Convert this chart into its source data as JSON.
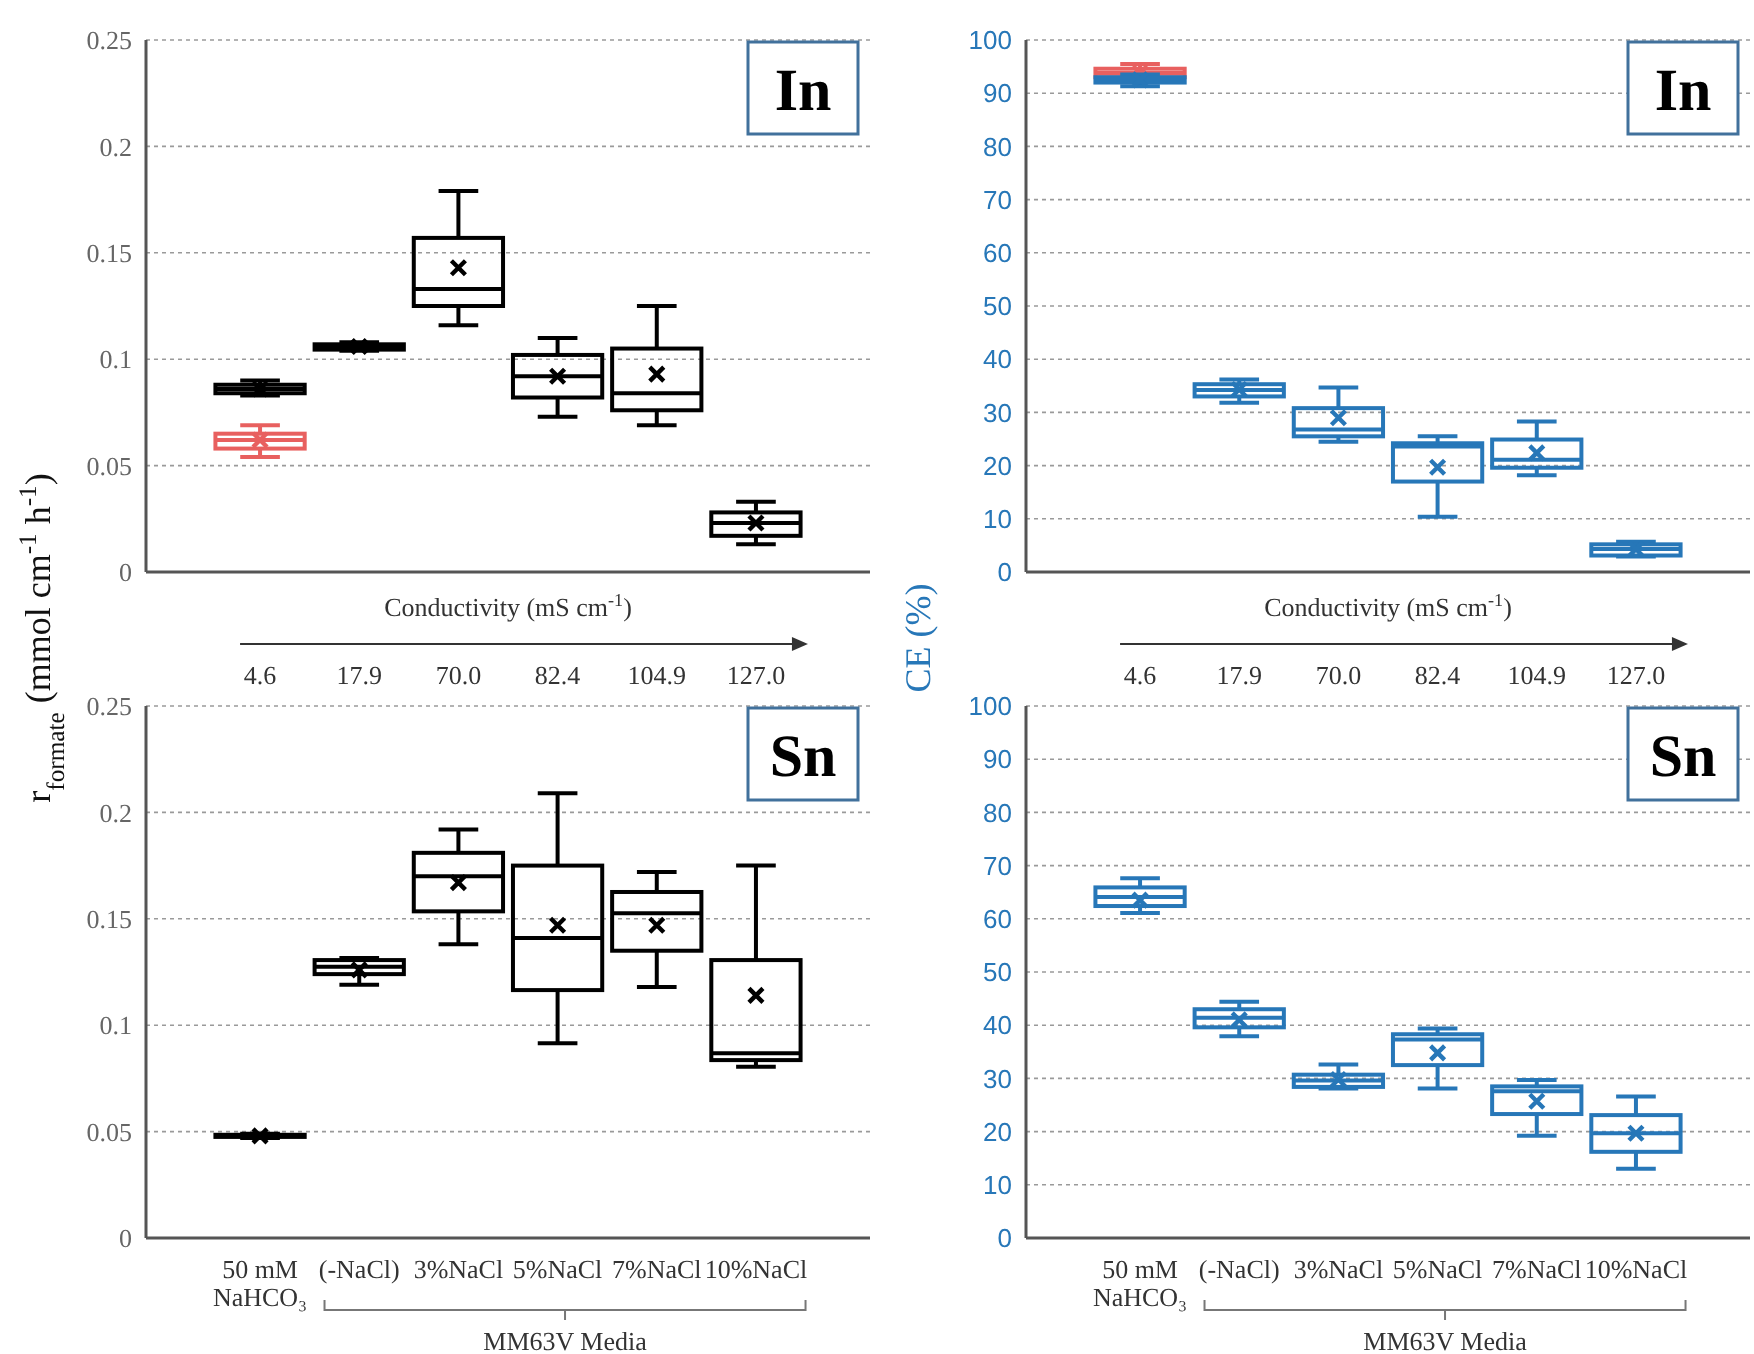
{
  "chart_data": [
    {
      "type": "box",
      "title": "In",
      "ylabel": "r$_{formate}$ (mmol cm$^{-1}$ h$^{-1}$)",
      "xlabel": "Conductivity (mS cm$^{-1}$)",
      "categories": [
        "4.6",
        "17.9",
        "70.0",
        "82.4",
        "104.9",
        "127.0"
      ],
      "ylim": [
        0,
        0.25
      ],
      "yticks": [
        0,
        0.05,
        0.1,
        0.15,
        0.2,
        0.25
      ],
      "grid": "y",
      "series": [
        {
          "color": "#000000",
          "boxes": [
            {
              "low": 0.083,
              "q1": 0.084,
              "median": 0.086,
              "q3": 0.088,
              "high": 0.09,
              "mean": 0.086
            },
            {
              "low": 0.104,
              "q1": 0.1045,
              "median": 0.106,
              "q3": 0.107,
              "high": 0.108,
              "mean": 0.106
            },
            {
              "low": 0.116,
              "q1": 0.125,
              "median": 0.133,
              "q3": 0.157,
              "high": 0.179,
              "mean": 0.143
            },
            {
              "low": 0.073,
              "q1": 0.082,
              "median": 0.092,
              "q3": 0.102,
              "high": 0.11,
              "mean": 0.092
            },
            {
              "low": 0.069,
              "q1": 0.076,
              "median": 0.084,
              "q3": 0.105,
              "high": 0.125,
              "mean": 0.093
            },
            {
              "low": 0.013,
              "q1": 0.017,
              "median": 0.023,
              "q3": 0.028,
              "high": 0.033,
              "mean": 0.023
            }
          ]
        },
        {
          "color": "#e8605f",
          "boxes": [
            {
              "low": 0.054,
              "q1": 0.058,
              "median": 0.062,
              "q3": 0.065,
              "high": 0.069,
              "mean": 0.062
            },
            null,
            null,
            null,
            null,
            null
          ]
        }
      ]
    },
    {
      "type": "box",
      "title": "In",
      "ylabel": "CE (%)",
      "xlabel": "Conductivity (mS cm$^{-1}$)",
      "categories": [
        "4.6",
        "17.9",
        "70.0",
        "82.4",
        "104.9",
        "127.0"
      ],
      "ylim": [
        0,
        100
      ],
      "yticks": [
        0,
        10,
        20,
        30,
        40,
        50,
        60,
        70,
        80,
        90,
        100
      ],
      "grid": "y",
      "series": [
        {
          "color": "#e8605f",
          "boxes": [
            {
              "low": 92.8,
              "q1": 93,
              "median": 93.8,
              "q3": 94.6,
              "high": 95.5,
              "mean": 93.8
            },
            null,
            null,
            null,
            null,
            null
          ]
        },
        {
          "color": "#2777b8",
          "boxes": [
            {
              "low": 91.3,
              "q1": 92,
              "median": 92.5,
              "q3": 93,
              "high": 93.5,
              "mean": 92.5
            },
            {
              "low": 31.8,
              "q1": 33,
              "median": 34.2,
              "q3": 35.3,
              "high": 36.2,
              "mean": 34.3
            },
            {
              "low": 24.5,
              "q1": 25.5,
              "median": 26.8,
              "q3": 30.8,
              "high": 34.7,
              "mean": 29
            },
            {
              "low": 10.4,
              "q1": 17,
              "median": 23.6,
              "q3": 24.2,
              "high": 25.5,
              "mean": 19.7
            },
            {
              "low": 18.2,
              "q1": 19.6,
              "median": 21.1,
              "q3": 24.9,
              "high": 28.3,
              "mean": 22.4
            },
            {
              "low": 2.9,
              "q1": 3.1,
              "median": 4.3,
              "q3": 5.2,
              "high": 5.7,
              "mean": 4.3
            }
          ]
        }
      ]
    },
    {
      "type": "box",
      "title": "Sn",
      "categories": [
        "50 mM NaHCO₃",
        "(-NaCl)",
        "3%NaCl",
        "5%NaCl",
        "7%NaCl",
        "10%NaCl"
      ],
      "ylim": [
        0,
        0.25
      ],
      "yticks": [
        0,
        0.05,
        0.1,
        0.15,
        0.2,
        0.25
      ],
      "grid": "y",
      "annotations": [
        "MM63V Media"
      ],
      "series": [
        {
          "color": "#000000",
          "boxes": [
            {
              "low": 0.047,
              "q1": 0.0475,
              "median": 0.048,
              "q3": 0.0485,
              "high": 0.049,
              "mean": 0.048
            },
            {
              "low": 0.119,
              "q1": 0.124,
              "median": 0.1275,
              "q3": 0.1306,
              "high": 0.1316,
              "mean": 0.126
            },
            {
              "low": 0.138,
              "q1": 0.1535,
              "median": 0.17,
              "q3": 0.181,
              "high": 0.192,
              "mean": 0.167
            },
            {
              "low": 0.0915,
              "q1": 0.1165,
              "median": 0.141,
              "q3": 0.175,
              "high": 0.209,
              "mean": 0.147
            },
            {
              "low": 0.118,
              "q1": 0.135,
              "median": 0.1526,
              "q3": 0.1626,
              "high": 0.172,
              "mean": 0.147
            },
            {
              "low": 0.0805,
              "q1": 0.0836,
              "median": 0.0868,
              "q3": 0.1306,
              "high": 0.175,
              "mean": 0.114
            }
          ]
        }
      ]
    },
    {
      "type": "box",
      "title": "Sn",
      "categories": [
        "50 mM NaHCO₃",
        "(-NaCl)",
        "3%NaCl",
        "5%NaCl",
        "7%NaCl",
        "10%NaCl"
      ],
      "ylim": [
        0,
        100
      ],
      "yticks": [
        0,
        10,
        20,
        30,
        40,
        50,
        60,
        70,
        80,
        90,
        100
      ],
      "grid": "y",
      "annotations": [
        "MM63V Media"
      ],
      "series": [
        {
          "color": "#2777b8",
          "boxes": [
            {
              "low": 61.1,
              "q1": 62.4,
              "median": 64.1,
              "q3": 65.9,
              "high": 67.6,
              "mean": 63.5
            },
            {
              "low": 37.9,
              "q1": 39.6,
              "median": 41.4,
              "q3": 43,
              "high": 44.4,
              "mean": 41
            },
            {
              "low": 28.1,
              "q1": 28.4,
              "median": 29.6,
              "q3": 30.7,
              "high": 32.6,
              "mean": 29.8
            },
            {
              "low": 28.1,
              "q1": 32.5,
              "median": 37.3,
              "q3": 38.3,
              "high": 39.4,
              "mean": 34.8
            },
            {
              "low": 19.2,
              "q1": 23.3,
              "median": 27.6,
              "q3": 28.5,
              "high": 29.7,
              "mean": 25.7
            },
            {
              "low": 13,
              "q1": 16.2,
              "median": 19.7,
              "q3": 23.1,
              "high": 26.6,
              "mean": 19.7
            }
          ]
        }
      ]
    }
  ]
}
